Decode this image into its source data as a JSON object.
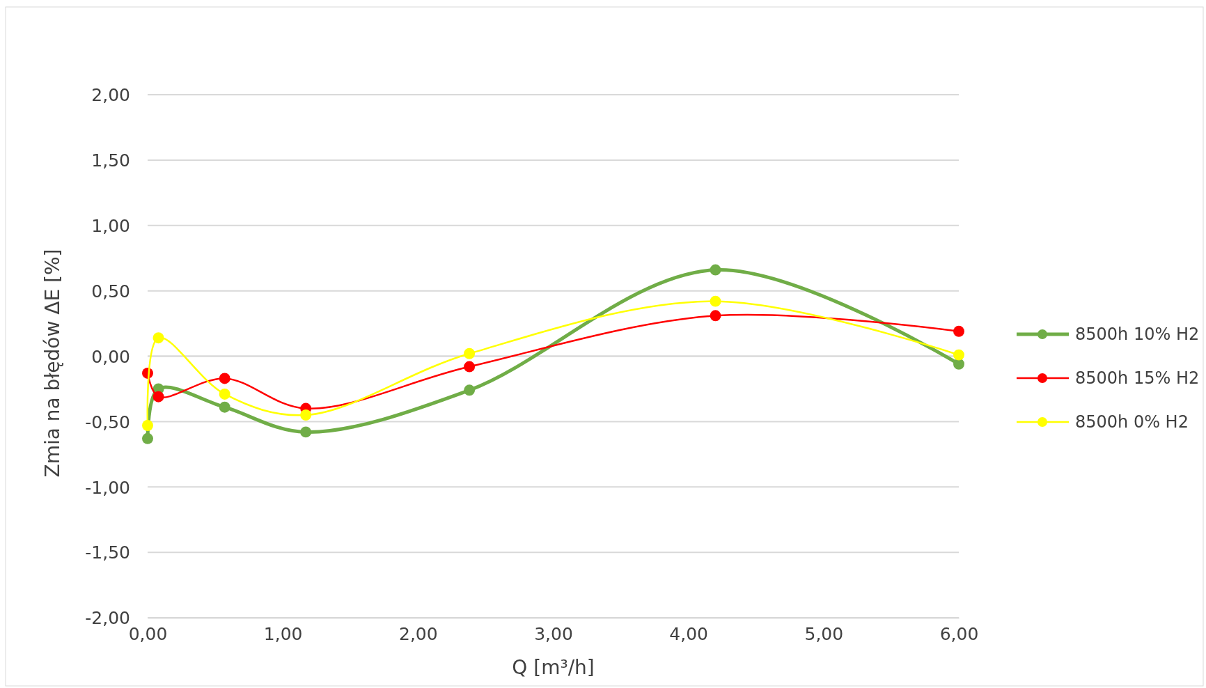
{
  "chart_data": {
    "type": "line",
    "xlabel": "Q [m³/h]",
    "ylabel": "Zmia na błędów  ΔE [%]",
    "xlim": [
      0,
      6
    ],
    "ylim": [
      -2,
      2
    ],
    "xticks": [
      {
        "value": 0,
        "label": "0,00"
      },
      {
        "value": 1,
        "label": "1,00"
      },
      {
        "value": 2,
        "label": "2,00"
      },
      {
        "value": 3,
        "label": "3,00"
      },
      {
        "value": 4,
        "label": "4,00"
      },
      {
        "value": 5,
        "label": "5,00"
      },
      {
        "value": 6,
        "label": "6,00"
      }
    ],
    "yticks": [
      {
        "value": -2,
        "label": "-2,00"
      },
      {
        "value": -1.5,
        "label": "-1,50"
      },
      {
        "value": -1,
        "label": "-1,00"
      },
      {
        "value": -0.5,
        "label": "-0,50"
      },
      {
        "value": 0,
        "label": "0,00"
      },
      {
        "value": 0.5,
        "label": "0,50"
      },
      {
        "value": 1,
        "label": "1,00"
      },
      {
        "value": 1.5,
        "label": "1,50"
      },
      {
        "value": 2,
        "label": "2,00"
      }
    ],
    "x": [
      0.0,
      0.08,
      0.57,
      1.17,
      2.38,
      4.2,
      6.0
    ],
    "series": [
      {
        "name": "8500h 10% H2",
        "color": "#70ad47",
        "values": [
          -0.63,
          -0.25,
          -0.39,
          -0.58,
          -0.26,
          0.66,
          -0.06
        ]
      },
      {
        "name": "8500h 15% H2",
        "color": "#ff0000",
        "values": [
          -0.13,
          -0.31,
          -0.17,
          -0.4,
          -0.08,
          0.31,
          0.19
        ]
      },
      {
        "name": "8500h 0% H2",
        "color": "#ffff00",
        "values": [
          -0.53,
          0.14,
          -0.29,
          -0.45,
          0.02,
          0.42,
          0.01
        ]
      }
    ],
    "grid": "y",
    "legend": "right",
    "marker": "circle",
    "line_style": "solid"
  }
}
